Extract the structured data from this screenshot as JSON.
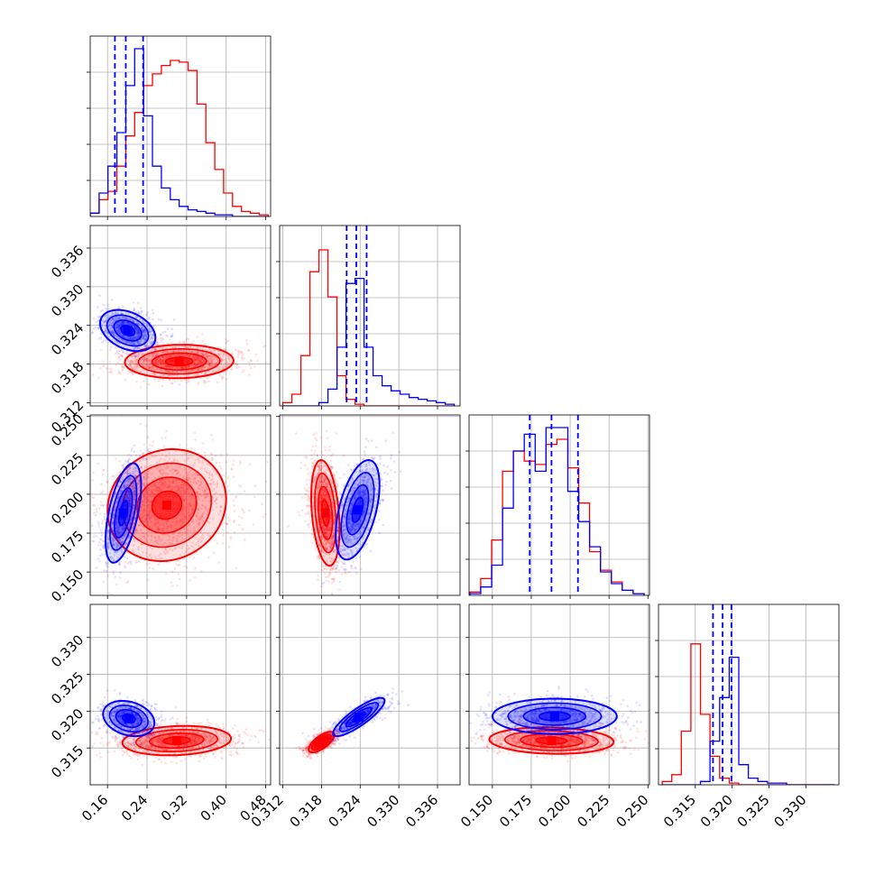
{
  "chart_data": {
    "type": "corner",
    "grid": true,
    "colors": {
      "series_a": "#0000ff",
      "series_b": "#ff0000"
    },
    "parameters": [
      {
        "range": [
          0.125,
          0.49
        ],
        "ticks": [
          "0.16",
          "0.24",
          "0.32",
          "0.40",
          "0.48"
        ],
        "tick_values": [
          0.16,
          0.24,
          0.32,
          0.4,
          0.48
        ]
      },
      {
        "range": [
          0.3115,
          0.3395
        ],
        "ticks": [
          "0.312",
          "0.318",
          "0.324",
          "0.330",
          "0.336"
        ],
        "tick_values": [
          0.312,
          0.318,
          0.324,
          0.33,
          0.336
        ]
      },
      {
        "range": [
          0.135,
          0.251
        ],
        "ticks": [
          "0.150",
          "0.175",
          "0.200",
          "0.225",
          "0.250"
        ],
        "tick_values": [
          0.15,
          0.175,
          0.2,
          0.225,
          0.25
        ]
      },
      {
        "range": [
          0.31,
          0.3345
        ],
        "ticks": [
          "0.315",
          "0.320",
          "0.325",
          "0.330"
        ],
        "tick_values": [
          0.315,
          0.32,
          0.325,
          0.33
        ]
      }
    ],
    "quantiles": {
      "series_a": [
        [
          0.175,
          0.197,
          0.232
        ],
        [
          0.3219,
          0.3234,
          0.325
        ],
        [
          0.174,
          0.188,
          0.205
        ],
        [
          0.3174,
          0.3187,
          0.3199
        ]
      ]
    },
    "histograms": [
      {
        "edges": [
          0.125,
          0.143,
          0.161,
          0.179,
          0.197,
          0.215,
          0.233,
          0.251,
          0.269,
          0.287,
          0.305,
          0.323,
          0.341,
          0.359,
          0.377,
          0.395,
          0.413,
          0.431,
          0.449,
          0.467,
          0.485
        ],
        "series_a": [
          0.02,
          0.14,
          0.3,
          0.5,
          0.78,
          1.0,
          0.6,
          0.3,
          0.17,
          0.1,
          0.06,
          0.04,
          0.03,
          0.02,
          0.01,
          0.01,
          0.0,
          0.0,
          0.0,
          0.0
        ],
        "series_b": [
          0.02,
          0.1,
          0.15,
          0.3,
          0.48,
          0.62,
          0.78,
          0.85,
          0.9,
          0.93,
          0.92,
          0.87,
          0.67,
          0.44,
          0.28,
          0.14,
          0.06,
          0.03,
          0.02,
          0.01
        ]
      },
      {
        "edges": [
          0.312,
          0.3134,
          0.3148,
          0.3162,
          0.3176,
          0.319,
          0.3204,
          0.3218,
          0.3232,
          0.3246,
          0.326,
          0.3274,
          0.3288,
          0.3302,
          0.3316,
          0.333,
          0.3344,
          0.3358,
          0.3372,
          0.3386
        ],
        "series_a": [
          0.0,
          0.0,
          0.0,
          0.0,
          0.02,
          0.1,
          0.35,
          0.73,
          0.76,
          0.35,
          0.18,
          0.12,
          0.09,
          0.07,
          0.05,
          0.04,
          0.03,
          0.02,
          0.01
        ],
        "series_b": [
          0.02,
          0.07,
          0.3,
          0.8,
          0.93,
          0.65,
          0.18,
          0.04,
          0.01,
          0.0,
          0.0,
          0.0,
          0.0,
          0.0,
          0.0,
          0.0,
          0.0,
          0.0,
          0.0
        ]
      },
      {
        "edges": [
          0.1355,
          0.1425,
          0.1495,
          0.1565,
          0.1635,
          0.1705,
          0.1775,
          0.1845,
          0.1915,
          0.1985,
          0.2055,
          0.2125,
          0.2195,
          0.2265,
          0.2335,
          0.2405,
          0.2475
        ],
        "series_a": [
          0.01,
          0.05,
          0.18,
          0.52,
          0.86,
          0.96,
          0.74,
          1.0,
          1.0,
          0.62,
          0.44,
          0.29,
          0.14,
          0.07,
          0.03,
          0.01
        ],
        "series_b": [
          0.02,
          0.1,
          0.33,
          0.74,
          0.86,
          0.8,
          0.78,
          0.9,
          0.93,
          0.76,
          0.55,
          0.26,
          0.15,
          0.08,
          0.03,
          0.01
        ]
      },
      {
        "edges": [
          0.3105,
          0.3118,
          0.3131,
          0.3144,
          0.3157,
          0.317,
          0.3183,
          0.3196,
          0.3209,
          0.3222,
          0.3235,
          0.3248,
          0.3261,
          0.3274,
          0.3287,
          0.33,
          0.3313,
          0.3326,
          0.3339
        ],
        "series_a": [
          0.0,
          0.0,
          0.0,
          0.0,
          0.02,
          0.26,
          0.52,
          0.76,
          0.12,
          0.04,
          0.02,
          0.01,
          0.01,
          0.0,
          0.0,
          0.0,
          0.0,
          0.0
        ],
        "series_b": [
          0.02,
          0.06,
          0.32,
          0.84,
          0.42,
          0.17,
          0.04,
          0.01,
          0.0,
          0.0,
          0.0,
          0.0,
          0.0,
          0.0,
          0.0,
          0.0,
          0.0,
          0.0
        ]
      }
    ],
    "scatter_2d": [
      {
        "x": 0,
        "y": 1,
        "series_a": {
          "center": [
            0.201,
            0.3232
          ],
          "sigma": [
            0.028,
            0.0016
          ],
          "rho": -0.35,
          "points": 900
        },
        "series_b": {
          "center": [
            0.305,
            0.3184
          ],
          "sigma": [
            0.055,
            0.0013
          ],
          "rho": 0.05,
          "points": 1300
        }
      },
      {
        "x": 0,
        "y": 2,
        "series_a": {
          "center": [
            0.192,
            0.188
          ],
          "sigma": [
            0.018,
            0.016
          ],
          "rho": 0.55,
          "points": 900
        },
        "series_b": {
          "center": [
            0.28,
            0.193
          ],
          "sigma": [
            0.06,
            0.018
          ],
          "rho": 0.1,
          "points": 1300
        }
      },
      {
        "x": 1,
        "y": 2,
        "series_a": {
          "center": [
            0.3236,
            0.19
          ],
          "sigma": [
            0.0017,
            0.016
          ],
          "rho": 0.5,
          "points": 900
        },
        "series_b": {
          "center": [
            0.3186,
            0.188
          ],
          "sigma": [
            0.0011,
            0.017
          ],
          "rho": -0.3,
          "points": 1300
        }
      },
      {
        "x": 0,
        "y": 3,
        "series_a": {
          "center": [
            0.203,
            0.319
          ],
          "sigma": [
            0.026,
            0.0012
          ],
          "rho": -0.25,
          "points": 900
        },
        "series_b": {
          "center": [
            0.3,
            0.316
          ],
          "sigma": [
            0.055,
            0.001
          ],
          "rho": 0.15,
          "points": 1300
        }
      },
      {
        "x": 1,
        "y": 3,
        "series_a": {
          "center": [
            0.3238,
            0.3192
          ],
          "sigma": [
            0.002,
            0.0013
          ],
          "rho": 0.85,
          "points": 900
        },
        "series_b": {
          "center": [
            0.318,
            0.3158
          ],
          "sigma": [
            0.001,
            0.0007
          ],
          "rho": 0.7,
          "points": 1300
        }
      },
      {
        "x": 2,
        "y": 3,
        "series_a": {
          "center": [
            0.19,
            0.3193
          ],
          "sigma": [
            0.02,
            0.0012
          ],
          "rho": 0.0,
          "points": 900
        },
        "series_b": {
          "center": [
            0.188,
            0.316
          ],
          "sigma": [
            0.02,
            0.0009
          ],
          "rho": -0.1,
          "points": 1300
        }
      }
    ]
  }
}
